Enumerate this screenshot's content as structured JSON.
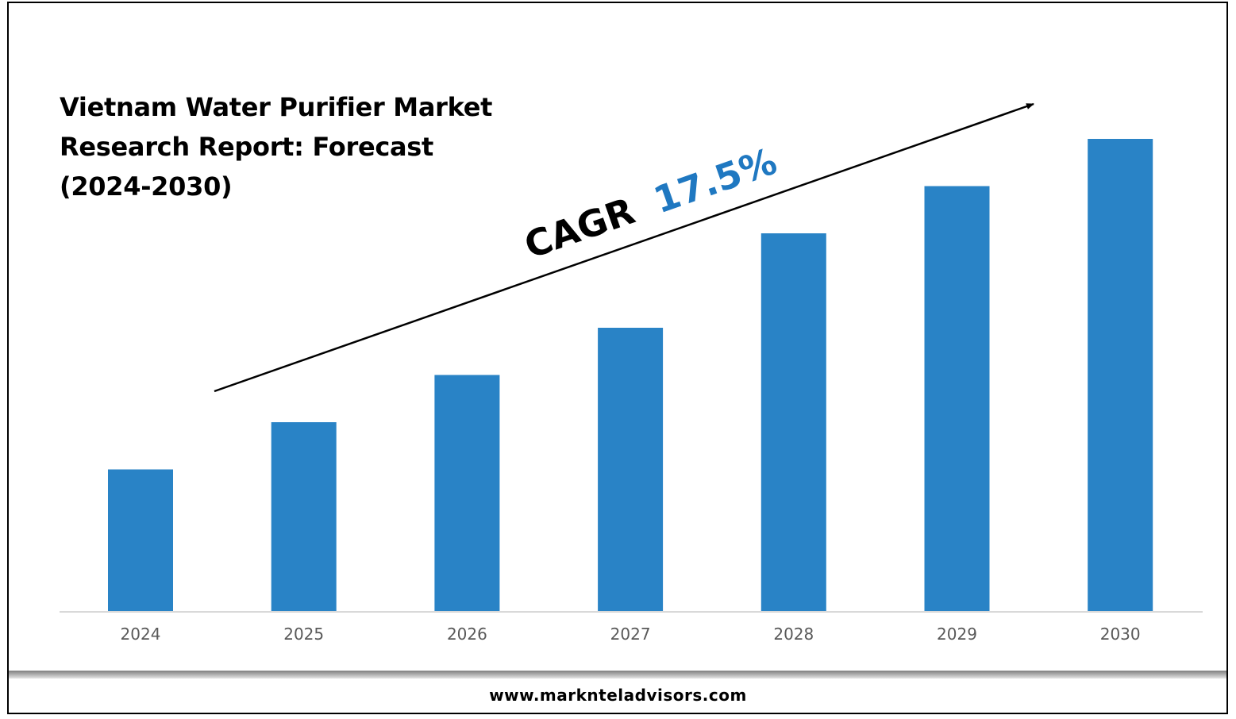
{
  "title": "Vietnam Water Purifier Market Research Report: Forecast (2024-2030)",
  "footer": {
    "url": "www.marknteladvisors.com"
  },
  "annotation": {
    "label": "CAGR",
    "value": "17.5%"
  },
  "colors": {
    "bar": "#2983c6",
    "cagr_value": "#1f78c1",
    "axis": "#d9d9d9",
    "tick_text": "#595959"
  },
  "chart_data": {
    "type": "bar",
    "categories": [
      "2024",
      "2025",
      "2026",
      "2027",
      "2028",
      "2029",
      "2030"
    ],
    "values": [
      30,
      40,
      50,
      60,
      80,
      90,
      100
    ],
    "ylim": [
      0,
      100
    ],
    "grid": false,
    "legend": "none",
    "xlabel": "",
    "ylabel": ""
  }
}
